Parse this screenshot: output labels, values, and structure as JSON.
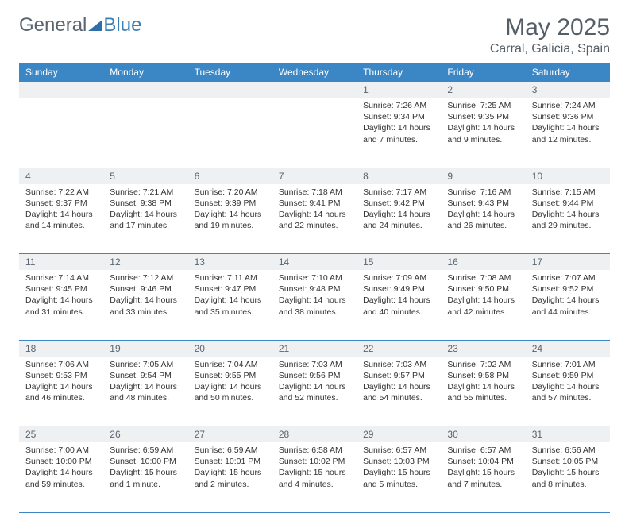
{
  "brand": {
    "part1": "General",
    "part2": "Blue"
  },
  "header": {
    "title": "May 2025",
    "location": "Carral, Galicia, Spain"
  },
  "colors": {
    "header_bg": "#3b86c4",
    "header_text": "#ffffff",
    "daynum_bg": "#eef0f2",
    "rule": "#3b86c4",
    "text": "#333333",
    "title_color": "#555e66"
  },
  "weekdays": [
    "Sunday",
    "Monday",
    "Tuesday",
    "Wednesday",
    "Thursday",
    "Friday",
    "Saturday"
  ],
  "weeks": [
    [
      null,
      null,
      null,
      null,
      {
        "n": "1",
        "sr": "Sunrise: 7:26 AM",
        "ss": "Sunset: 9:34 PM",
        "d1": "Daylight: 14 hours",
        "d2": "and 7 minutes."
      },
      {
        "n": "2",
        "sr": "Sunrise: 7:25 AM",
        "ss": "Sunset: 9:35 PM",
        "d1": "Daylight: 14 hours",
        "d2": "and 9 minutes."
      },
      {
        "n": "3",
        "sr": "Sunrise: 7:24 AM",
        "ss": "Sunset: 9:36 PM",
        "d1": "Daylight: 14 hours",
        "d2": "and 12 minutes."
      }
    ],
    [
      {
        "n": "4",
        "sr": "Sunrise: 7:22 AM",
        "ss": "Sunset: 9:37 PM",
        "d1": "Daylight: 14 hours",
        "d2": "and 14 minutes."
      },
      {
        "n": "5",
        "sr": "Sunrise: 7:21 AM",
        "ss": "Sunset: 9:38 PM",
        "d1": "Daylight: 14 hours",
        "d2": "and 17 minutes."
      },
      {
        "n": "6",
        "sr": "Sunrise: 7:20 AM",
        "ss": "Sunset: 9:39 PM",
        "d1": "Daylight: 14 hours",
        "d2": "and 19 minutes."
      },
      {
        "n": "7",
        "sr": "Sunrise: 7:18 AM",
        "ss": "Sunset: 9:41 PM",
        "d1": "Daylight: 14 hours",
        "d2": "and 22 minutes."
      },
      {
        "n": "8",
        "sr": "Sunrise: 7:17 AM",
        "ss": "Sunset: 9:42 PM",
        "d1": "Daylight: 14 hours",
        "d2": "and 24 minutes."
      },
      {
        "n": "9",
        "sr": "Sunrise: 7:16 AM",
        "ss": "Sunset: 9:43 PM",
        "d1": "Daylight: 14 hours",
        "d2": "and 26 minutes."
      },
      {
        "n": "10",
        "sr": "Sunrise: 7:15 AM",
        "ss": "Sunset: 9:44 PM",
        "d1": "Daylight: 14 hours",
        "d2": "and 29 minutes."
      }
    ],
    [
      {
        "n": "11",
        "sr": "Sunrise: 7:14 AM",
        "ss": "Sunset: 9:45 PM",
        "d1": "Daylight: 14 hours",
        "d2": "and 31 minutes."
      },
      {
        "n": "12",
        "sr": "Sunrise: 7:12 AM",
        "ss": "Sunset: 9:46 PM",
        "d1": "Daylight: 14 hours",
        "d2": "and 33 minutes."
      },
      {
        "n": "13",
        "sr": "Sunrise: 7:11 AM",
        "ss": "Sunset: 9:47 PM",
        "d1": "Daylight: 14 hours",
        "d2": "and 35 minutes."
      },
      {
        "n": "14",
        "sr": "Sunrise: 7:10 AM",
        "ss": "Sunset: 9:48 PM",
        "d1": "Daylight: 14 hours",
        "d2": "and 38 minutes."
      },
      {
        "n": "15",
        "sr": "Sunrise: 7:09 AM",
        "ss": "Sunset: 9:49 PM",
        "d1": "Daylight: 14 hours",
        "d2": "and 40 minutes."
      },
      {
        "n": "16",
        "sr": "Sunrise: 7:08 AM",
        "ss": "Sunset: 9:50 PM",
        "d1": "Daylight: 14 hours",
        "d2": "and 42 minutes."
      },
      {
        "n": "17",
        "sr": "Sunrise: 7:07 AM",
        "ss": "Sunset: 9:52 PM",
        "d1": "Daylight: 14 hours",
        "d2": "and 44 minutes."
      }
    ],
    [
      {
        "n": "18",
        "sr": "Sunrise: 7:06 AM",
        "ss": "Sunset: 9:53 PM",
        "d1": "Daylight: 14 hours",
        "d2": "and 46 minutes."
      },
      {
        "n": "19",
        "sr": "Sunrise: 7:05 AM",
        "ss": "Sunset: 9:54 PM",
        "d1": "Daylight: 14 hours",
        "d2": "and 48 minutes."
      },
      {
        "n": "20",
        "sr": "Sunrise: 7:04 AM",
        "ss": "Sunset: 9:55 PM",
        "d1": "Daylight: 14 hours",
        "d2": "and 50 minutes."
      },
      {
        "n": "21",
        "sr": "Sunrise: 7:03 AM",
        "ss": "Sunset: 9:56 PM",
        "d1": "Daylight: 14 hours",
        "d2": "and 52 minutes."
      },
      {
        "n": "22",
        "sr": "Sunrise: 7:03 AM",
        "ss": "Sunset: 9:57 PM",
        "d1": "Daylight: 14 hours",
        "d2": "and 54 minutes."
      },
      {
        "n": "23",
        "sr": "Sunrise: 7:02 AM",
        "ss": "Sunset: 9:58 PM",
        "d1": "Daylight: 14 hours",
        "d2": "and 55 minutes."
      },
      {
        "n": "24",
        "sr": "Sunrise: 7:01 AM",
        "ss": "Sunset: 9:59 PM",
        "d1": "Daylight: 14 hours",
        "d2": "and 57 minutes."
      }
    ],
    [
      {
        "n": "25",
        "sr": "Sunrise: 7:00 AM",
        "ss": "Sunset: 10:00 PM",
        "d1": "Daylight: 14 hours",
        "d2": "and 59 minutes."
      },
      {
        "n": "26",
        "sr": "Sunrise: 6:59 AM",
        "ss": "Sunset: 10:00 PM",
        "d1": "Daylight: 15 hours",
        "d2": "and 1 minute."
      },
      {
        "n": "27",
        "sr": "Sunrise: 6:59 AM",
        "ss": "Sunset: 10:01 PM",
        "d1": "Daylight: 15 hours",
        "d2": "and 2 minutes."
      },
      {
        "n": "28",
        "sr": "Sunrise: 6:58 AM",
        "ss": "Sunset: 10:02 PM",
        "d1": "Daylight: 15 hours",
        "d2": "and 4 minutes."
      },
      {
        "n": "29",
        "sr": "Sunrise: 6:57 AM",
        "ss": "Sunset: 10:03 PM",
        "d1": "Daylight: 15 hours",
        "d2": "and 5 minutes."
      },
      {
        "n": "30",
        "sr": "Sunrise: 6:57 AM",
        "ss": "Sunset: 10:04 PM",
        "d1": "Daylight: 15 hours",
        "d2": "and 7 minutes."
      },
      {
        "n": "31",
        "sr": "Sunrise: 6:56 AM",
        "ss": "Sunset: 10:05 PM",
        "d1": "Daylight: 15 hours",
        "d2": "and 8 minutes."
      }
    ]
  ]
}
